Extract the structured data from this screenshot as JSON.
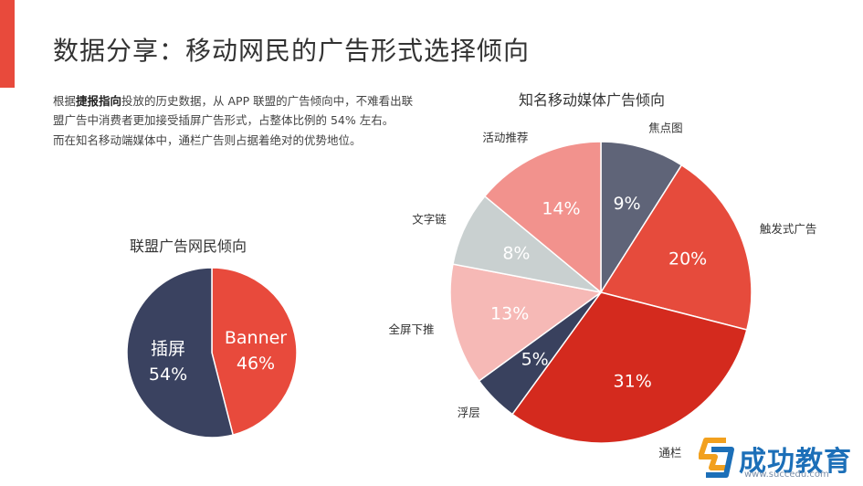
{
  "slide": {
    "title": "数据分享：移动网民的广告形式选择倾向",
    "accent_color": "#e84a3c"
  },
  "description": {
    "p1_prefix": "根据",
    "p1_bold": "捷报指向",
    "p1_rest": "投放的历史数据，从 APP 联盟的广告倾向中，不难看出联盟广告中消费者更加接受插屏广告形式，占整体比例的 54% 左右。",
    "p2": "而在知名移动端媒体中，通栏广告则占据着绝对的优势地位。"
  },
  "chart_data": [
    {
      "type": "pie",
      "title": "联盟广告网民倾向",
      "slices": [
        {
          "label": "Banner",
          "value": 46,
          "display": "46%",
          "color": "#e84a3c"
        },
        {
          "label": "插屏",
          "value": 54,
          "display": "54%",
          "color": "#3a4260"
        }
      ]
    },
    {
      "type": "pie",
      "title": "知名移动媒体广告倾向",
      "slices": [
        {
          "label": "焦点图",
          "value": 9,
          "display": "9%",
          "color": "#5f6478"
        },
        {
          "label": "触发式广告",
          "value": 20,
          "display": "20%",
          "color": "#e64b3c"
        },
        {
          "label": "通栏",
          "value": 31,
          "display": "31%",
          "color": "#d42a1e"
        },
        {
          "label": "浮层",
          "value": 5,
          "display": "5%",
          "color": "#39415e"
        },
        {
          "label": "全屏下推",
          "value": 13,
          "display": "13%",
          "color": "#f6b9b6"
        },
        {
          "label": "文字链",
          "value": 8,
          "display": "8%",
          "color": "#c9d0d0"
        },
        {
          "label": "活动推荐",
          "value": 14,
          "display": "14%",
          "color": "#f2928d"
        }
      ]
    }
  ],
  "logo": {
    "text": "成功教育",
    "url": "www.succedu.com",
    "colors": [
      "#f2a01e",
      "#1c6fb8"
    ]
  }
}
